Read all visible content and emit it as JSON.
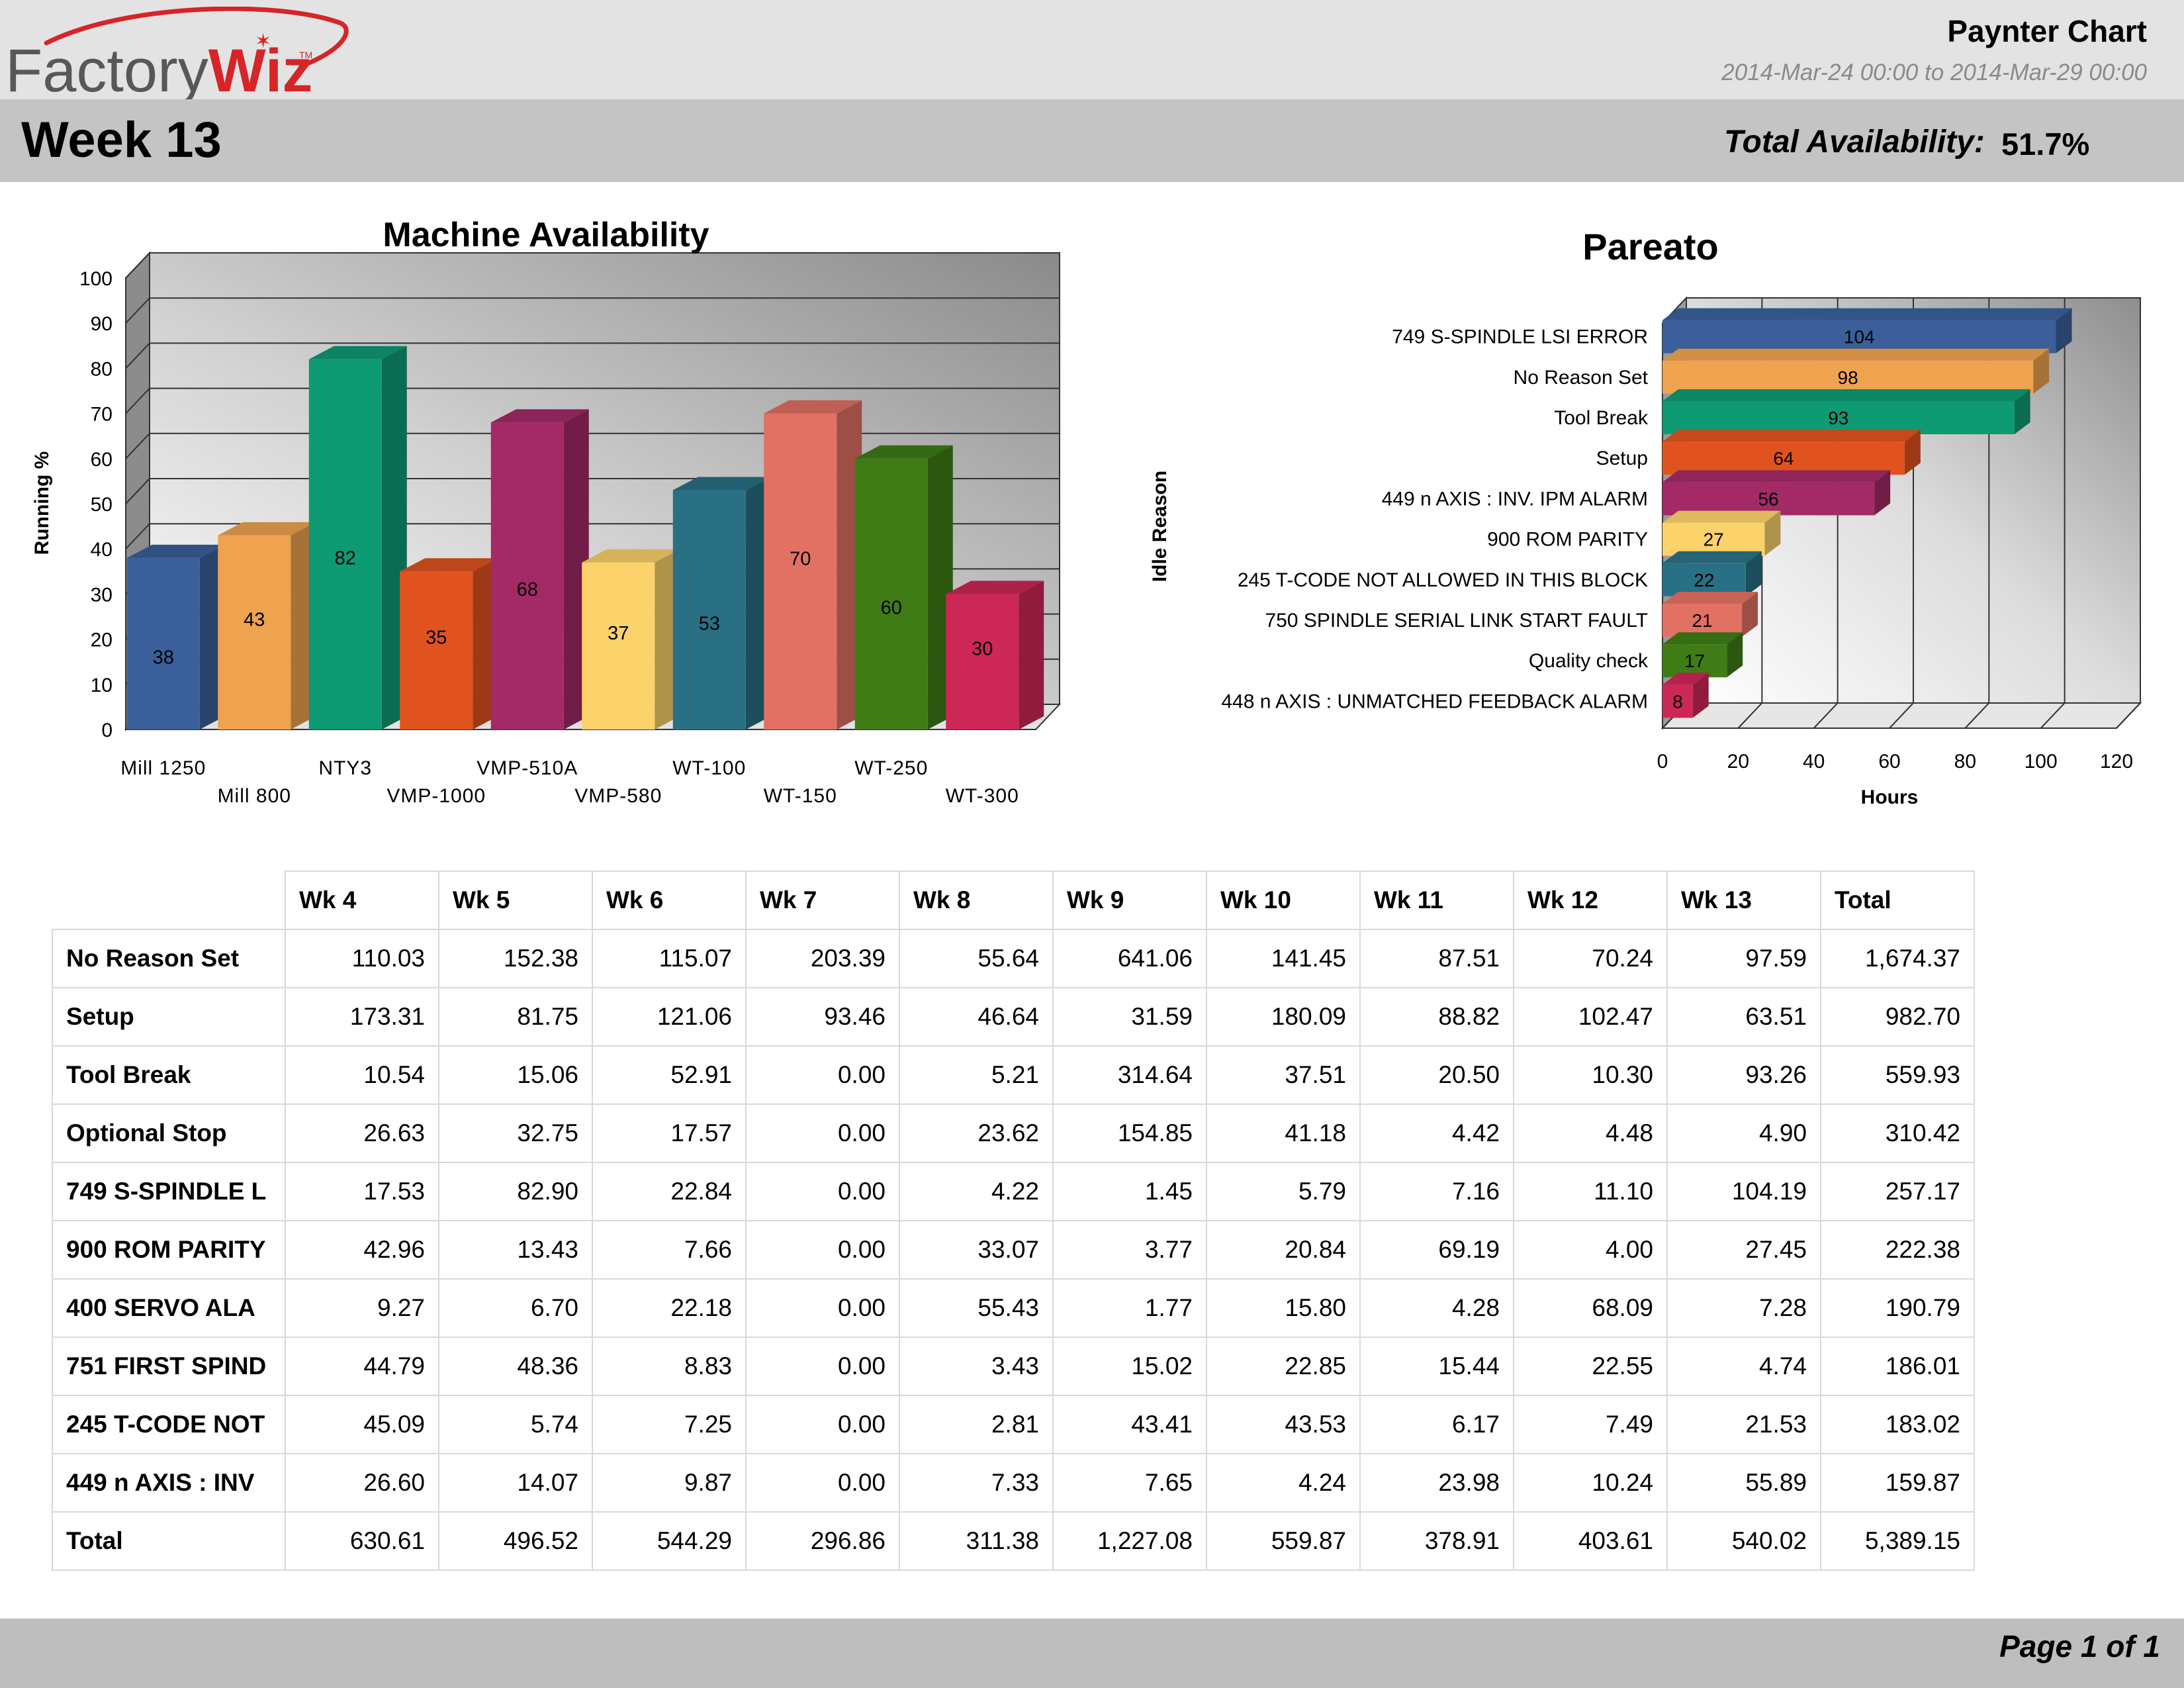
{
  "header": {
    "logo_text_light": "Factory",
    "logo_text_bold": "Wiz",
    "logo_tm": "TM",
    "report_title": "Paynter Chart",
    "date_range": "2014-Mar-24 00:00 to 2014-Mar-29 00:00",
    "week_title": "Week 13",
    "total_availability_label": "Total Availability:",
    "total_availability_value": "51.7%"
  },
  "colors": {
    "logo_red": "#d62428",
    "logo_gray": "#58585a",
    "top_band": "#e3e3e3",
    "week_band": "#c4c4c4",
    "footer_band": "#bebebe"
  },
  "chart_data": [
    {
      "type": "bar",
      "orientation": "vertical",
      "title": "Machine Availability",
      "ylabel": "Running %",
      "xlabel": "",
      "ylim": [
        0,
        100
      ],
      "yticks": [
        0,
        10,
        20,
        30,
        40,
        50,
        60,
        70,
        80,
        90,
        100
      ],
      "grid": true,
      "categories": [
        "Mill 1250",
        "Mill 800",
        "NTY3",
        "VMP-1000",
        "VMP-510A",
        "VMP-580",
        "WT-100",
        "WT-150",
        "WT-250",
        "WT-300"
      ],
      "values": [
        38,
        43,
        82,
        35,
        68,
        37,
        53,
        70,
        60,
        30
      ],
      "data_labels": [
        "38",
        "43",
        "82",
        "35",
        "68",
        "37",
        "53",
        "70",
        "60",
        "30"
      ],
      "bar_colors": [
        "#3a5f9a",
        "#efa34f",
        "#0e9a73",
        "#e0531e",
        "#a32a66",
        "#fcd26a",
        "#2a7085",
        "#e27163",
        "#3f7c16",
        "#cd2757"
      ]
    },
    {
      "type": "bar",
      "orientation": "horizontal",
      "title": "Pareato",
      "ylabel": "Idle Reason",
      "xlabel": "Hours",
      "xlim": [
        0,
        120
      ],
      "xticks": [
        0,
        20,
        40,
        60,
        80,
        100,
        120
      ],
      "grid": true,
      "categories": [
        "749 S-SPINDLE LSI ERROR",
        "No Reason Set",
        "Tool Break",
        "Setup",
        "449 n AXIS : INV. IPM ALARM",
        "900 ROM PARITY",
        "245 T-CODE NOT ALLOWED IN THIS BLOCK",
        "750 SPINDLE SERIAL LINK START FAULT",
        "Quality check",
        "448 n AXIS : UNMATCHED FEEDBACK ALARM"
      ],
      "values": [
        104,
        98,
        93,
        64,
        56,
        27,
        22,
        21,
        17,
        8
      ],
      "data_labels": [
        "104",
        "98",
        "93",
        "64",
        "56",
        "27",
        "22",
        "21",
        "17",
        "8"
      ],
      "bar_colors": [
        "#3a5f9a",
        "#efa34f",
        "#0e9a73",
        "#e0531e",
        "#a32a66",
        "#fcd26a",
        "#2a7085",
        "#e27163",
        "#3f7c16",
        "#cd2757"
      ]
    },
    {
      "type": "table",
      "columns": [
        "Wk 4",
        "Wk 5",
        "Wk 6",
        "Wk 7",
        "Wk 8",
        "Wk 9",
        "Wk 10",
        "Wk 11",
        "Wk 12",
        "Wk 13",
        "Total"
      ],
      "rows": [
        {
          "label": "No Reason Set",
          "cells": [
            "110.03",
            "152.38",
            "115.07",
            "203.39",
            "55.64",
            "641.06",
            "141.45",
            "87.51",
            "70.24",
            "97.59",
            "1,674.37"
          ]
        },
        {
          "label": "Setup",
          "cells": [
            "173.31",
            "81.75",
            "121.06",
            "93.46",
            "46.64",
            "31.59",
            "180.09",
            "88.82",
            "102.47",
            "63.51",
            "982.70"
          ]
        },
        {
          "label": "Tool Break",
          "cells": [
            "10.54",
            "15.06",
            "52.91",
            "0.00",
            "5.21",
            "314.64",
            "37.51",
            "20.50",
            "10.30",
            "93.26",
            "559.93"
          ]
        },
        {
          "label": "Optional Stop",
          "cells": [
            "26.63",
            "32.75",
            "17.57",
            "0.00",
            "23.62",
            "154.85",
            "41.18",
            "4.42",
            "4.48",
            "4.90",
            "310.42"
          ]
        },
        {
          "label": "749 S-SPINDLE L",
          "cells": [
            "17.53",
            "82.90",
            "22.84",
            "0.00",
            "4.22",
            "1.45",
            "5.79",
            "7.16",
            "11.10",
            "104.19",
            "257.17"
          ]
        },
        {
          "label": "900 ROM PARITY",
          "cells": [
            "42.96",
            "13.43",
            "7.66",
            "0.00",
            "33.07",
            "3.77",
            "20.84",
            "69.19",
            "4.00",
            "27.45",
            "222.38"
          ]
        },
        {
          "label": "400 SERVO ALA",
          "cells": [
            "9.27",
            "6.70",
            "22.18",
            "0.00",
            "55.43",
            "1.77",
            "15.80",
            "4.28",
            "68.09",
            "7.28",
            "190.79"
          ]
        },
        {
          "label": "751 FIRST SPIND",
          "cells": [
            "44.79",
            "48.36",
            "8.83",
            "0.00",
            "3.43",
            "15.02",
            "22.85",
            "15.44",
            "22.55",
            "4.74",
            "186.01"
          ]
        },
        {
          "label": "245 T-CODE NOT",
          "cells": [
            "45.09",
            "5.74",
            "7.25",
            "0.00",
            "2.81",
            "43.41",
            "43.53",
            "6.17",
            "7.49",
            "21.53",
            "183.02"
          ]
        },
        {
          "label": "449 n AXIS : INV",
          "cells": [
            "26.60",
            "14.07",
            "9.87",
            "0.00",
            "7.33",
            "7.65",
            "4.24",
            "23.98",
            "10.24",
            "55.89",
            "159.87"
          ]
        },
        {
          "label": "Total",
          "cells": [
            "630.61",
            "496.52",
            "544.29",
            "296.86",
            "311.38",
            "1,227.08",
            "559.87",
            "378.91",
            "403.61",
            "540.02",
            "5,389.15"
          ]
        }
      ]
    }
  ],
  "footer": {
    "page_label": "Page 1 of 1"
  }
}
